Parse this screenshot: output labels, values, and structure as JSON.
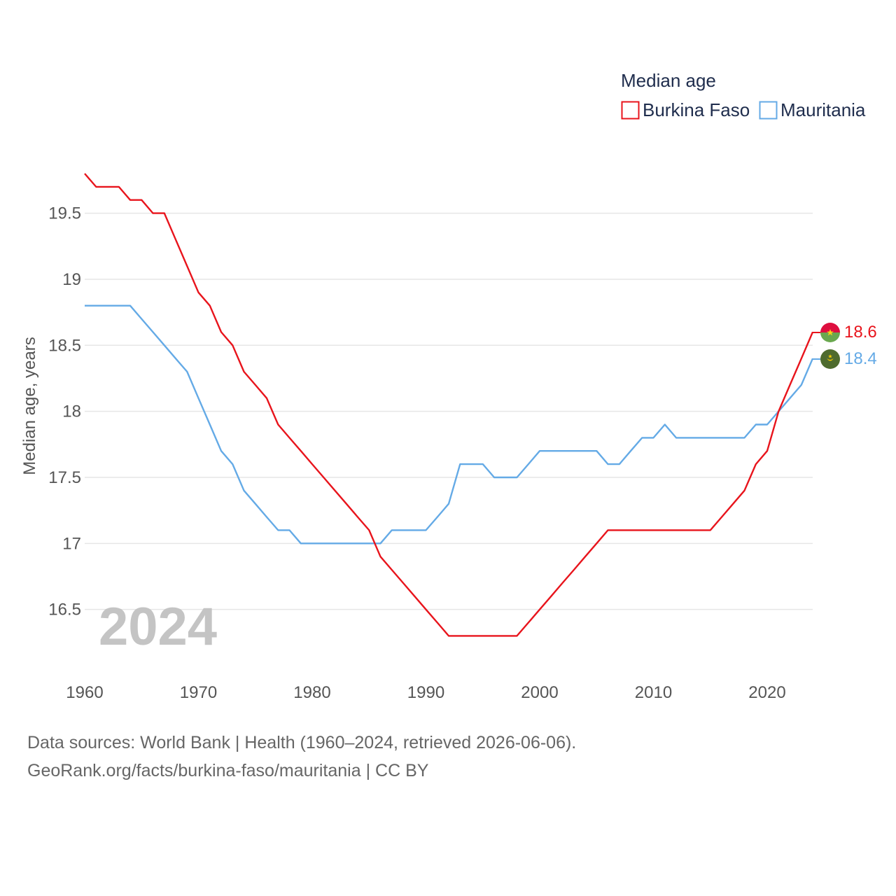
{
  "chart_data": {
    "type": "line",
    "legend_title": "Median age",
    "ylabel": "Median age, years",
    "xlabel": "",
    "year_label": "2024",
    "xlim": [
      1960,
      2024
    ],
    "ylim": [
      16.0,
      19.8
    ],
    "yticks": [
      16.5,
      17,
      17.5,
      18,
      18.5,
      19,
      19.5
    ],
    "ytick_labels": [
      "16.5",
      "17",
      "17.5",
      "18",
      "18.5",
      "19",
      "19.5"
    ],
    "xticks": [
      1960,
      1970,
      1980,
      1990,
      2000,
      2010,
      2020
    ],
    "xtick_labels": [
      "1960",
      "1970",
      "1980",
      "1990",
      "2000",
      "2010",
      "2020"
    ],
    "x": [
      1960,
      1961,
      1962,
      1963,
      1964,
      1965,
      1966,
      1967,
      1968,
      1969,
      1970,
      1971,
      1972,
      1973,
      1974,
      1975,
      1976,
      1977,
      1978,
      1979,
      1980,
      1981,
      1982,
      1983,
      1984,
      1985,
      1986,
      1987,
      1988,
      1989,
      1990,
      1991,
      1992,
      1993,
      1994,
      1995,
      1996,
      1997,
      1998,
      1999,
      2000,
      2001,
      2002,
      2003,
      2004,
      2005,
      2006,
      2007,
      2008,
      2009,
      2010,
      2011,
      2012,
      2013,
      2014,
      2015,
      2016,
      2017,
      2018,
      2019,
      2020,
      2021,
      2022,
      2023,
      2024
    ],
    "series": [
      {
        "name": "Burkina Faso",
        "color": "#e8141c",
        "end_label": "18.6",
        "values": [
          19.8,
          19.7,
          19.7,
          19.7,
          19.6,
          19.6,
          19.5,
          19.5,
          19.3,
          19.1,
          18.9,
          18.8,
          18.6,
          18.5,
          18.3,
          18.2,
          18.1,
          17.9,
          17.8,
          17.7,
          17.6,
          17.5,
          17.4,
          17.3,
          17.2,
          17.1,
          16.9,
          16.8,
          16.7,
          16.6,
          16.5,
          16.4,
          16.3,
          16.3,
          16.3,
          16.3,
          16.3,
          16.3,
          16.3,
          16.4,
          16.5,
          16.6,
          16.7,
          16.8,
          16.9,
          17.0,
          17.1,
          17.1,
          17.1,
          17.1,
          17.1,
          17.1,
          17.1,
          17.1,
          17.1,
          17.1,
          17.2,
          17.3,
          17.4,
          17.6,
          17.7,
          18.0,
          18.2,
          18.4,
          18.6
        ]
      },
      {
        "name": "Mauritania",
        "color": "#64aae6",
        "end_label": "18.4",
        "values": [
          18.8,
          18.8,
          18.8,
          18.8,
          18.8,
          18.7,
          18.6,
          18.5,
          18.4,
          18.3,
          18.1,
          17.9,
          17.7,
          17.6,
          17.4,
          17.3,
          17.2,
          17.1,
          17.1,
          17.0,
          17.0,
          17.0,
          17.0,
          17.0,
          17.0,
          17.0,
          17.0,
          17.1,
          17.1,
          17.1,
          17.1,
          17.2,
          17.3,
          17.6,
          17.6,
          17.6,
          17.5,
          17.5,
          17.5,
          17.6,
          17.7,
          17.7,
          17.7,
          17.7,
          17.7,
          17.7,
          17.6,
          17.6,
          17.7,
          17.8,
          17.8,
          17.9,
          17.8,
          17.8,
          17.8,
          17.8,
          17.8,
          17.8,
          17.8,
          17.9,
          17.9,
          18.0,
          18.1,
          18.2,
          18.4
        ]
      }
    ]
  },
  "source": {
    "line1": "Data sources: World Bank | Health (1960–2024, retrieved 2026-06-06).",
    "line2": "GeoRank.org/facts/burkina-faso/mauritania | CC BY"
  },
  "colors": {
    "grid": "#e6e6e6",
    "flag_bf_red": "#de0f3f",
    "flag_bf_green": "#6aa84f",
    "flag_bf_star": "#fcd116",
    "flag_mr_green": "#4e6b2e",
    "flag_mr_gold": "#ffd100"
  }
}
